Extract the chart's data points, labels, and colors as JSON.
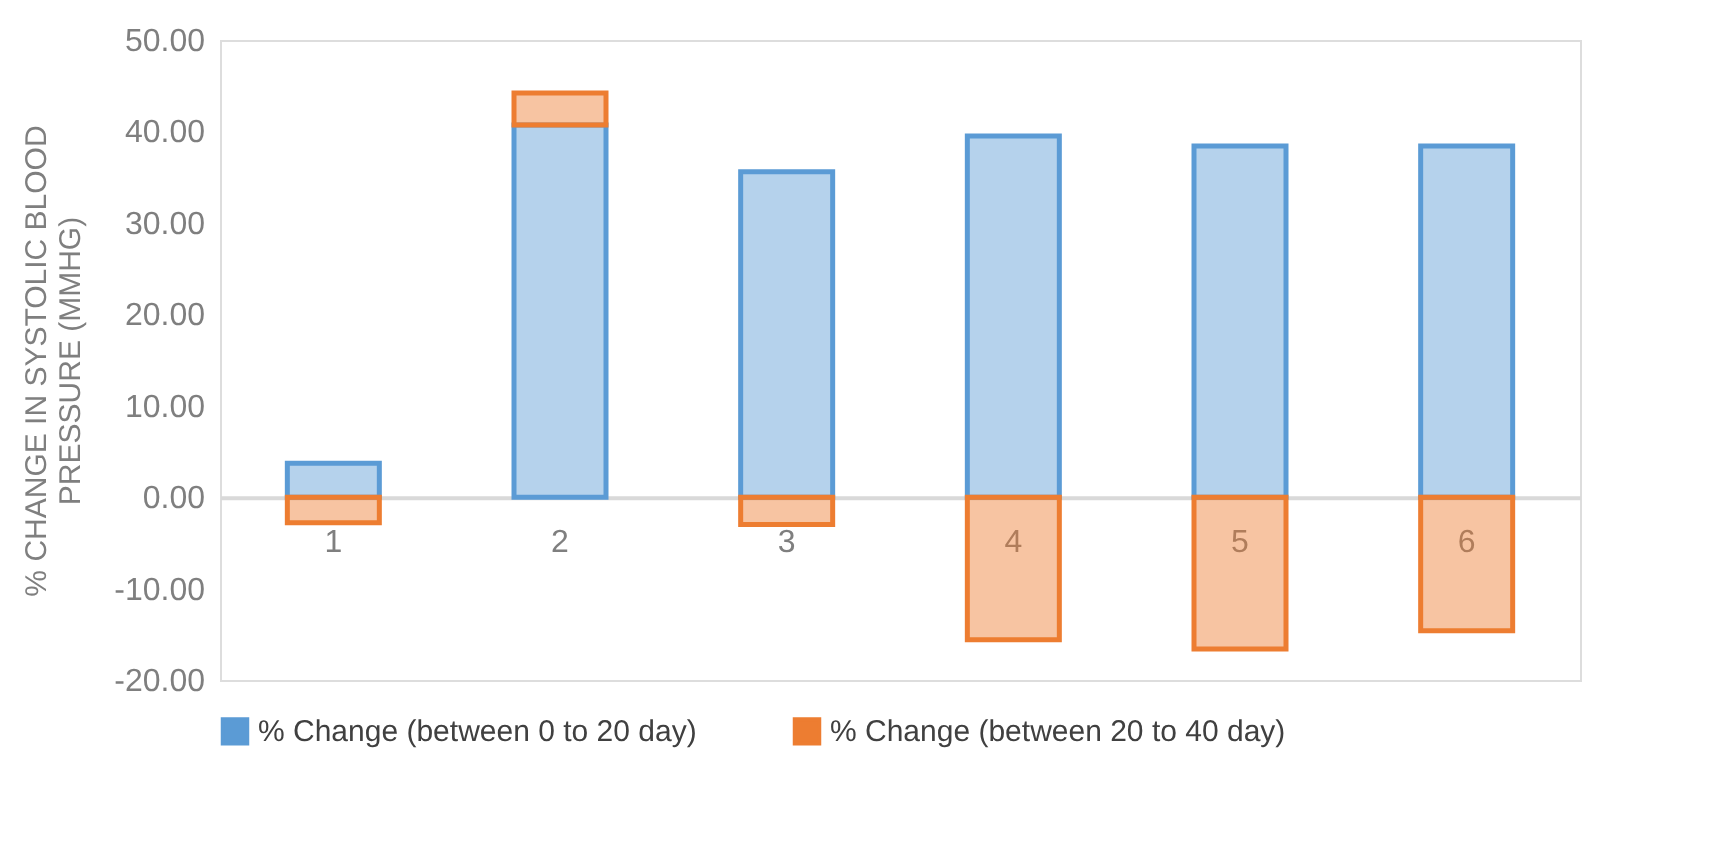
{
  "chart_data": {
    "type": "bar",
    "stacked": true,
    "ylabel": "% CHANGE IN SYSTOLIC BLOOD PRESSURE (MMHG)",
    "categories": [
      "1",
      "2",
      "3",
      "4",
      "5",
      "6"
    ],
    "series": [
      {
        "name": "% Change (between  0 to 20 day)",
        "color": "#5b9bd5",
        "values": [
          3.7,
          40.7,
          35.6,
          39.5,
          38.4,
          38.4
        ]
      },
      {
        "name": "% Change (between 20 to 40 day)",
        "color": "#ed7d31",
        "values": [
          -2.8,
          3.5,
          -3.0,
          -15.6,
          -16.6,
          -14.6
        ]
      }
    ],
    "ylim": [
      -20,
      50
    ],
    "yticks": [
      {
        "value": -20,
        "label": "-20.00"
      },
      {
        "value": -10,
        "label": "-10.00"
      },
      {
        "value": 0,
        "label": "0.00"
      },
      {
        "value": 10,
        "label": "10.00"
      },
      {
        "value": 20,
        "label": "20.00"
      },
      {
        "value": 30,
        "label": "30.00"
      },
      {
        "value": 40,
        "label": "40.00"
      },
      {
        "value": 50,
        "label": "50.00"
      }
    ],
    "grid": false,
    "legend": "bottom"
  }
}
